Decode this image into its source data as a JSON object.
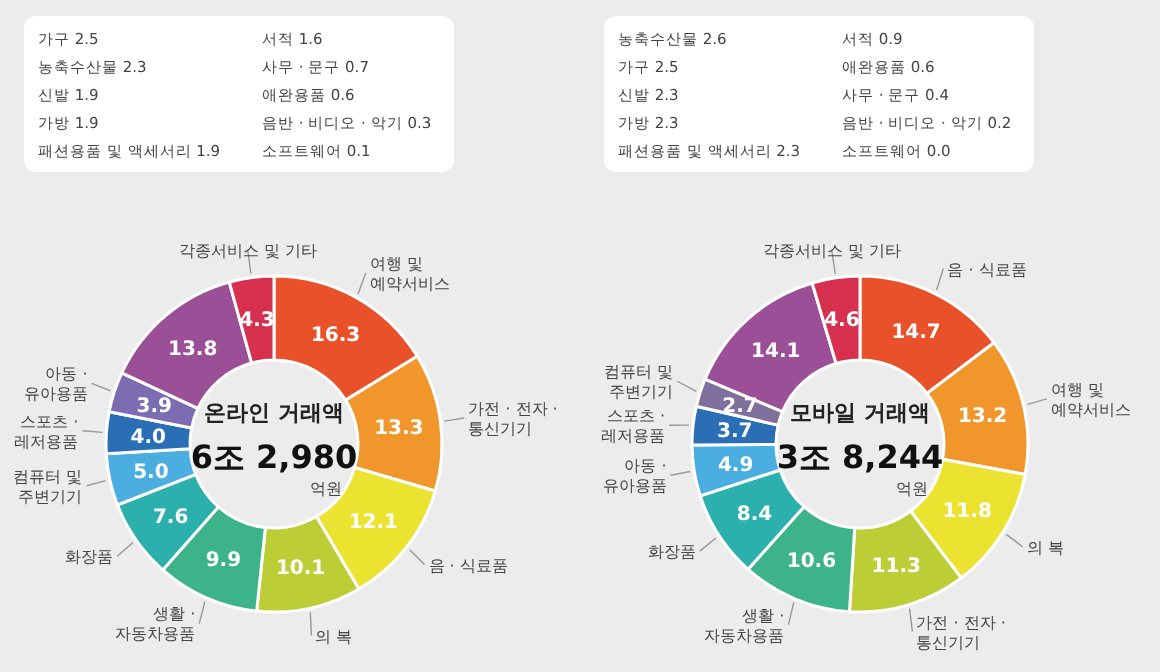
{
  "chart_data": [
    {
      "type": "donut",
      "title": "온라인 거래액",
      "subtitle": "6조 2,980",
      "categories": [
        "여행 및 예약서비스",
        "가전 · 전자 · 통신기기",
        "음 · 식료품",
        "의 복",
        "생활 · 자동차용품",
        "화장품",
        "컴퓨터 및 주변기기",
        "스포츠 · 레저용품",
        "아동 · 유아용품",
        null,
        "각종서비스 및 기타"
      ],
      "values": [
        16.3,
        13.3,
        12.1,
        10.1,
        9.9,
        7.6,
        5.0,
        4.0,
        3.9,
        13.8,
        4.3
      ],
      "colors": [
        "#e8512a",
        "#f0962a",
        "#ece330",
        "#bccd35",
        "#3db38a",
        "#2bb0ae",
        "#4aaee0",
        "#2a6fb5",
        "#7c6db3",
        "#9a4f96",
        "#d7304f"
      ],
      "value_labels": [
        "16.3",
        "13.3",
        "12.1",
        "10.1",
        "9.9",
        "7.6",
        "5.0",
        "4.0",
        "3.9",
        "13.8",
        "4.3"
      ],
      "annotations": [
        "가구 2.5",
        "농축수산물 2.3",
        "신발 1.9",
        "가방 1.9",
        "패션용품 및 액세서리 1.9",
        "서적 1.6",
        "사무 · 문구 0.7",
        "애완용품 0.6",
        "음반 · 비디오 · 악기 0.3",
        "소프트웨어 0.1",
        "억원"
      ]
    },
    {
      "type": "donut",
      "title": "모바일 거래액",
      "subtitle": "3조 8,244",
      "categories": [
        "음 · 식료품",
        "여행 및 예약서비스",
        "의 복",
        "가전 · 전자 · 통신기기",
        "생활 · 자동차용품",
        "화장품",
        "아동 · 유아용품",
        "스포츠 · 레저용품",
        "컴퓨터 및 주변기기",
        null,
        "각종서비스 및 기타"
      ],
      "values": [
        14.7,
        13.2,
        11.8,
        11.3,
        10.6,
        8.4,
        4.9,
        3.7,
        2.7,
        14.1,
        4.6
      ],
      "colors": [
        "#e8512a",
        "#f0962a",
        "#ece330",
        "#bccd35",
        "#3db38a",
        "#2bb0ae",
        "#4aaee0",
        "#2a6fb5",
        "#7f6f9c",
        "#9a4f96",
        "#d7304f"
      ],
      "value_labels": [
        "14.7",
        "13.2",
        "11.8",
        "11.3",
        "10.6",
        "8.4",
        "4.9",
        "3.7",
        "2.7",
        "14.1",
        "4.6"
      ],
      "annotations": [
        "농축수산물 2.6",
        "가구 2.5",
        "신발 2.3",
        "가방 2.3",
        "패션용품 및 액세서리 2.3",
        "서적 0.9",
        "애완용품 0.6",
        "사무 · 문구 0.4",
        "음반 · 비디오 · 악기 0.2",
        "소프트웨어 0.0",
        "억원"
      ]
    }
  ]
}
